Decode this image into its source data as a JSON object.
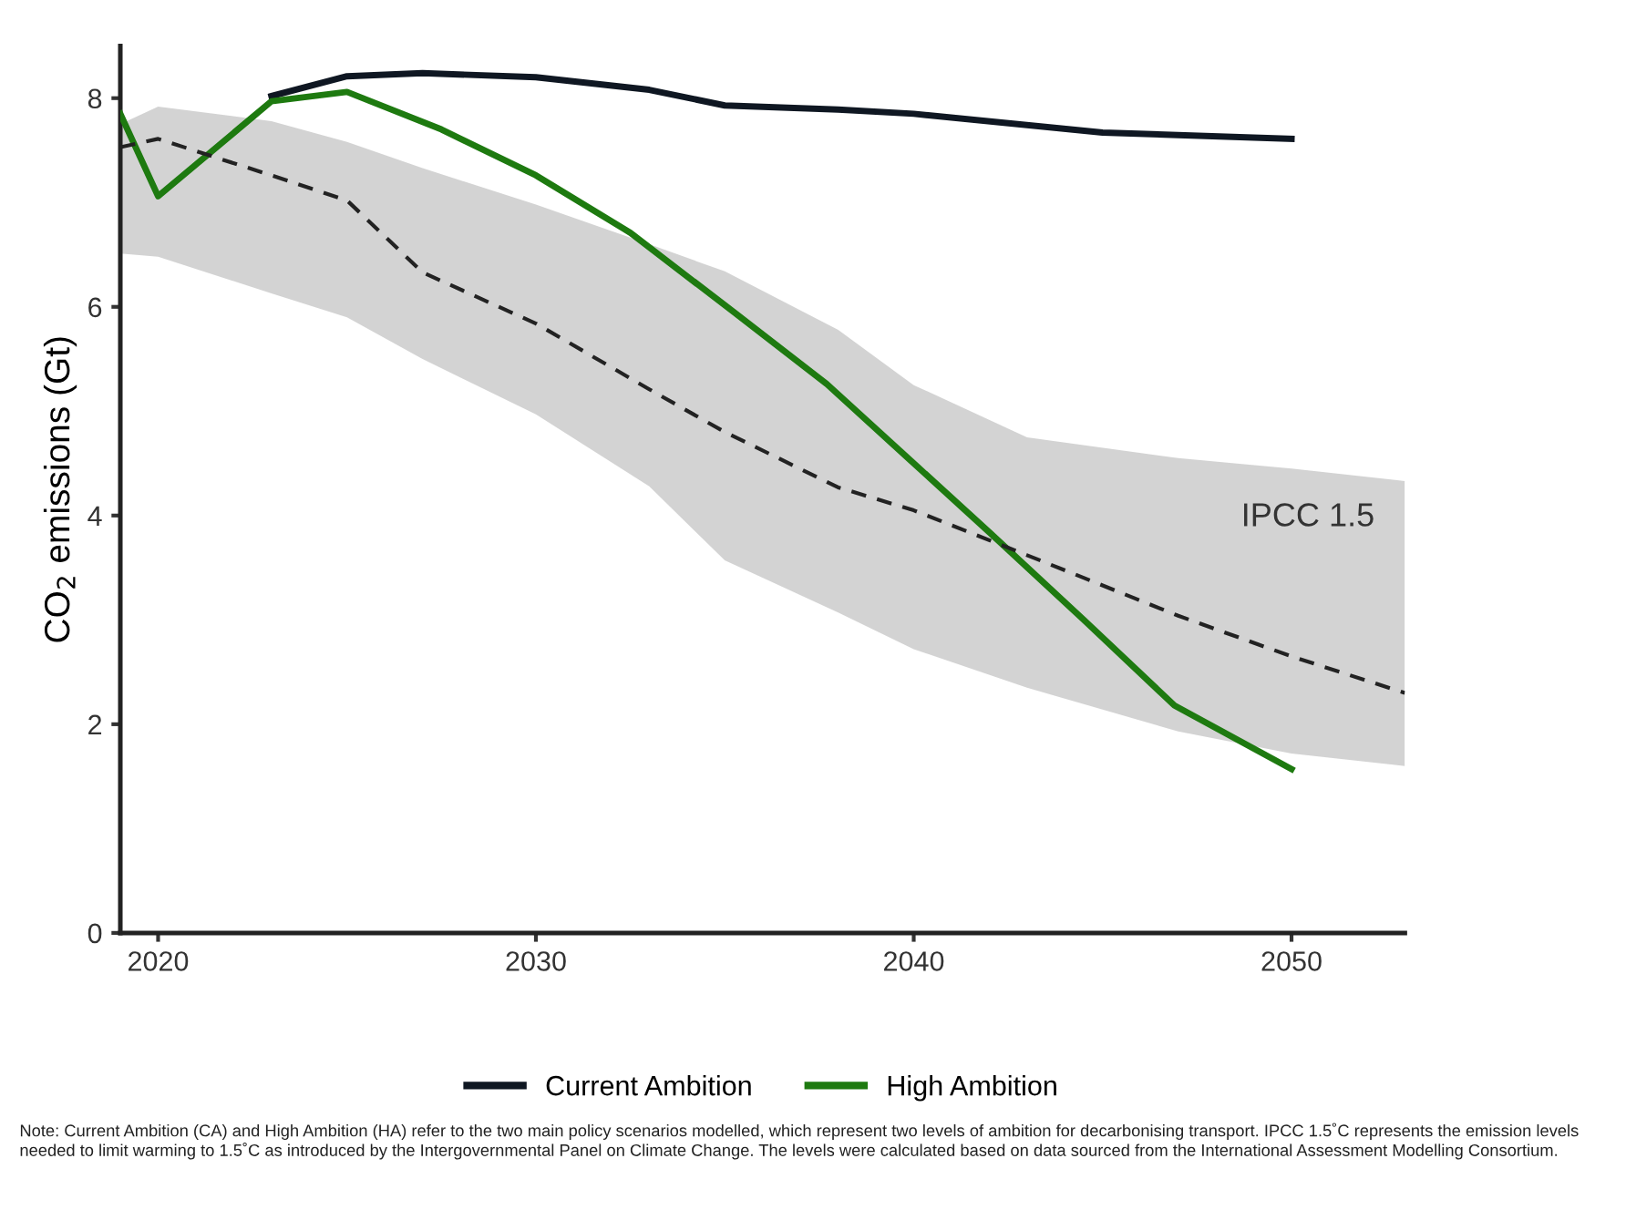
{
  "chart_data": {
    "type": "line",
    "ylabel": "CO$_{2}$ emissions (Gt)",
    "xlim": [
      2019,
      2053
    ],
    "xticks": [
      2020,
      2030,
      2040,
      2050
    ],
    "ylim": [
      0,
      8.5
    ],
    "yticks": [
      0,
      2,
      4,
      6,
      8
    ],
    "grid": false,
    "legend": "bottom",
    "marker": "none",
    "series": [
      {
        "name": "Current Ambition",
        "color": "#0f1722",
        "line_style": "solid",
        "x": [
          2023,
          2025,
          2027,
          2030,
          2033,
          2035,
          2038,
          2040,
          2045,
          2050
        ],
        "values": [
          8.02,
          8.21,
          8.24,
          8.2,
          8.08,
          7.93,
          7.89,
          7.85,
          7.67,
          7.61
        ]
      },
      {
        "name": "High Ambition",
        "color": "#1e7a10",
        "line_style": "solid",
        "x": [
          2019,
          2020,
          2023,
          2025,
          2027.5,
          2030,
          2032.5,
          2035.2,
          2037.7,
          2042,
          2044.5,
          2046.9,
          2050
        ],
        "values": [
          7.85,
          7.06,
          7.97,
          8.06,
          7.7,
          7.26,
          6.71,
          5.96,
          5.26,
          3.84,
          3.0,
          2.18,
          1.57
        ]
      },
      {
        "name": "IPCC 1.5",
        "color": "#222222",
        "line_style": "dashed",
        "x": [
          2019,
          2020,
          2023,
          2025,
          2027,
          2030,
          2033,
          2035,
          2038,
          2040,
          2043,
          2047,
          2050,
          2053
        ],
        "values": [
          7.53,
          7.61,
          7.26,
          7.02,
          6.33,
          5.84,
          5.21,
          4.8,
          4.27,
          4.05,
          3.62,
          3.04,
          2.65,
          2.3
        ],
        "lower": [
          6.51,
          6.48,
          6.13,
          5.9,
          5.5,
          4.97,
          4.28,
          3.57,
          3.07,
          2.72,
          2.35,
          1.93,
          1.72,
          1.6
        ],
        "upper": [
          7.75,
          7.92,
          7.78,
          7.58,
          7.33,
          6.98,
          6.6,
          6.34,
          5.78,
          5.25,
          4.75,
          4.55,
          4.45,
          4.33
        ]
      }
    ],
    "annotations": [
      "Note: Current Ambition (CA) and High Ambition (HA) refer to the two main policy scenarios modelled, which represent two levels of ambition for decarbonising transport. IPCC 1.5˚C represents the emission levels needed to limit warming to 1.5˚C as introduced by the Intergovernmental Panel on Climate Change. The levels were calculated based on data sourced from the International Assessment Modelling Consortium."
    ]
  }
}
